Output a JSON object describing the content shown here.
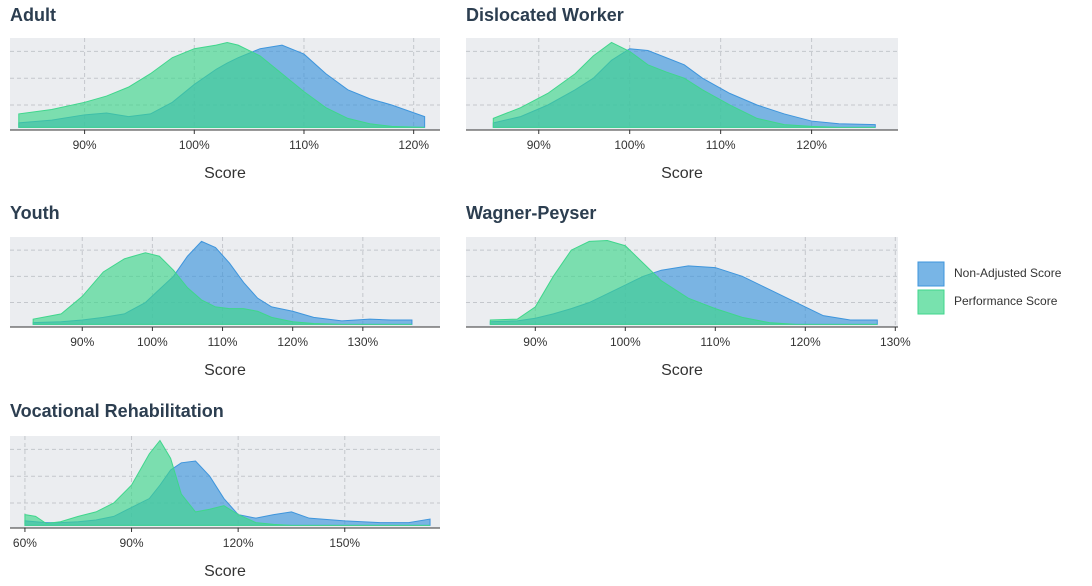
{
  "chart_data": [
    {
      "type": "area",
      "title": "Adult",
      "x_label": "Score",
      "x": [
        84,
        87,
        90,
        92,
        94,
        96,
        98,
        100,
        102,
        103,
        104,
        106,
        108,
        110,
        112,
        114,
        116,
        118,
        121
      ],
      "series": [
        {
          "name": "Non-Adjusted Score",
          "color": "#3e95dc",
          "values": [
            0.05,
            0.08,
            0.14,
            0.16,
            0.12,
            0.15,
            0.28,
            0.48,
            0.65,
            0.72,
            0.78,
            0.88,
            0.92,
            0.82,
            0.6,
            0.42,
            0.32,
            0.25,
            0.12
          ]
        },
        {
          "name": "Performance Score",
          "color": "#3fd68c",
          "values": [
            0.15,
            0.2,
            0.28,
            0.35,
            0.45,
            0.6,
            0.78,
            0.88,
            0.92,
            0.95,
            0.92,
            0.8,
            0.6,
            0.4,
            0.22,
            0.1,
            0.04,
            0.01,
            0
          ]
        }
      ],
      "xlim": [
        83.2,
        122.4
      ],
      "xticks": [
        {
          "value": 90,
          "label": "90%"
        },
        {
          "value": 100,
          "label": "100%"
        },
        {
          "value": 110,
          "label": "110%"
        },
        {
          "value": 120,
          "label": "120%"
        }
      ],
      "ylim": [
        -0.03,
        1
      ],
      "yticks": [
        0.25,
        0.55,
        0.85
      ],
      "grid": true
    },
    {
      "type": "area",
      "title": "Dislocated Worker",
      "x_label": "Score",
      "x": [
        85,
        88,
        91,
        94,
        96,
        98,
        100,
        102,
        104,
        106,
        108,
        111,
        114,
        117,
        120,
        123,
        127
      ],
      "series": [
        {
          "name": "Non-Adjusted Score",
          "color": "#3e95dc",
          "values": [
            0.05,
            0.12,
            0.25,
            0.42,
            0.55,
            0.75,
            0.88,
            0.86,
            0.78,
            0.7,
            0.55,
            0.38,
            0.25,
            0.15,
            0.07,
            0.04,
            0.03
          ]
        },
        {
          "name": "Performance Score",
          "color": "#3fd68c",
          "values": [
            0.1,
            0.22,
            0.38,
            0.6,
            0.8,
            0.95,
            0.85,
            0.7,
            0.62,
            0.55,
            0.42,
            0.25,
            0.1,
            0.03,
            0.01,
            0,
            0
          ]
        }
      ],
      "xlim": [
        82,
        129.5
      ],
      "xticks": [
        {
          "value": 90,
          "label": "90%"
        },
        {
          "value": 100,
          "label": "100%"
        },
        {
          "value": 110,
          "label": "110%"
        },
        {
          "value": 120,
          "label": "120%"
        }
      ],
      "ylim": [
        -0.03,
        1
      ],
      "yticks": [
        0.25,
        0.55,
        0.85
      ],
      "grid": true
    },
    {
      "type": "area",
      "title": "Youth",
      "x_label": "Score",
      "x": [
        83,
        87,
        90,
        93,
        96,
        99,
        101,
        103,
        105,
        107,
        109,
        111,
        113,
        115,
        117,
        120,
        123,
        127,
        131,
        134,
        137
      ],
      "series": [
        {
          "name": "Non-Adjusted Score",
          "color": "#3e95dc",
          "values": [
            0.02,
            0.03,
            0.05,
            0.08,
            0.12,
            0.25,
            0.4,
            0.55,
            0.78,
            0.95,
            0.88,
            0.7,
            0.48,
            0.3,
            0.2,
            0.15,
            0.08,
            0.04,
            0.06,
            0.05,
            0.05
          ]
        },
        {
          "name": "Performance Score",
          "color": "#3fd68c",
          "values": [
            0.06,
            0.12,
            0.32,
            0.6,
            0.75,
            0.82,
            0.78,
            0.62,
            0.42,
            0.28,
            0.2,
            0.18,
            0.18,
            0.15,
            0.08,
            0.03,
            0.01,
            0,
            0,
            0,
            0
          ]
        }
      ],
      "xlim": [
        79.7,
        141
      ],
      "xticks": [
        {
          "value": 90,
          "label": "90%"
        },
        {
          "value": 100,
          "label": "100%"
        },
        {
          "value": 110,
          "label": "110%"
        },
        {
          "value": 120,
          "label": "120%"
        },
        {
          "value": 130,
          "label": "130%"
        }
      ],
      "ylim": [
        -0.03,
        1
      ],
      "yticks": [
        0.25,
        0.55,
        0.85
      ],
      "grid": true
    },
    {
      "type": "area",
      "title": "Wagner-Peyser",
      "x_label": "Score",
      "x": [
        85,
        88,
        90,
        92,
        94,
        96,
        98,
        100,
        102,
        104,
        107,
        110,
        113,
        116,
        119,
        122,
        125,
        128
      ],
      "series": [
        {
          "name": "Non-Adjusted Score",
          "color": "#3e95dc",
          "values": [
            0.03,
            0.04,
            0.07,
            0.12,
            0.18,
            0.25,
            0.35,
            0.45,
            0.55,
            0.62,
            0.67,
            0.65,
            0.55,
            0.4,
            0.25,
            0.1,
            0.05,
            0.05
          ]
        },
        {
          "name": "Performance Score",
          "color": "#3fd68c",
          "values": [
            0.05,
            0.06,
            0.2,
            0.55,
            0.85,
            0.95,
            0.96,
            0.9,
            0.7,
            0.5,
            0.3,
            0.18,
            0.08,
            0.02,
            0,
            0,
            0,
            0
          ]
        }
      ],
      "xlim": [
        82.3,
        130.3
      ],
      "xticks": [
        {
          "value": 90,
          "label": "90%"
        },
        {
          "value": 100,
          "label": "100%"
        },
        {
          "value": 110,
          "label": "110%"
        },
        {
          "value": 120,
          "label": "120%"
        },
        {
          "value": 130,
          "label": "130%"
        }
      ],
      "ylim": [
        -0.03,
        1
      ],
      "yticks": [
        0.25,
        0.55,
        0.85
      ],
      "grid": true
    },
    {
      "type": "area",
      "title": "Vocational Rehabilitation",
      "x_label": "Score",
      "x": [
        60,
        63,
        66,
        70,
        75,
        80,
        85,
        90,
        95,
        98,
        101,
        104,
        108,
        112,
        116,
        120,
        125,
        130,
        135,
        140,
        150,
        160,
        168,
        174
      ],
      "series": [
        {
          "name": "Non-Adjusted Score",
          "color": "#3e95dc",
          "values": [
            0.05,
            0.04,
            0.03,
            0.03,
            0.04,
            0.06,
            0.1,
            0.2,
            0.3,
            0.45,
            0.62,
            0.7,
            0.72,
            0.55,
            0.3,
            0.12,
            0.08,
            0.12,
            0.15,
            0.08,
            0.05,
            0.03,
            0.03,
            0.07
          ]
        },
        {
          "name": "Performance Score",
          "color": "#3fd68c",
          "values": [
            0.12,
            0.1,
            0.02,
            0.04,
            0.1,
            0.15,
            0.25,
            0.45,
            0.8,
            0.95,
            0.75,
            0.35,
            0.15,
            0.18,
            0.22,
            0.12,
            0.03,
            0.01,
            0,
            0,
            0,
            0,
            0,
            0
          ]
        }
      ],
      "xlim": [
        55.8,
        176.8
      ],
      "xticks": [
        {
          "value": 60,
          "label": "60%"
        },
        {
          "value": 90,
          "label": "90%"
        },
        {
          "value": 120,
          "label": "120%"
        },
        {
          "value": 150,
          "label": "150%"
        }
      ],
      "ylim": [
        -0.03,
        1
      ],
      "yticks": [
        0.25,
        0.55,
        0.85
      ],
      "grid": true
    }
  ]
}
